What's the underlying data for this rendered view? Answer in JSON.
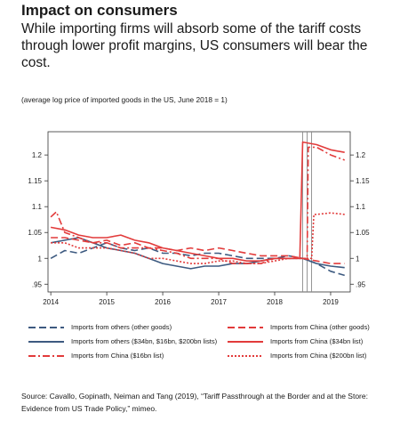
{
  "header": {
    "title": "Impact on consumers",
    "subtitle": "While importing firms will absorb some of the tariff costs through lower profit margins, US consumers will bear the cost.",
    "note": "(average log price of imported goods in the US, June 2018 = 1)"
  },
  "source": "Source: Cavallo, Gopinath, Neiman and Tang (2019), “Tariff Passthrough at the Border and at the Store: Evidence from US Trade Policy,” mimeo.",
  "chart_data": {
    "type": "line",
    "xlim": [
      2013.95,
      2019.35
    ],
    "ylim": [
      0.935,
      1.245
    ],
    "x_ticks": [
      2014,
      2015,
      2016,
      2017,
      2018,
      2019
    ],
    "x_tick_labels": [
      "2014",
      "2015",
      "2016",
      "2017",
      "2018",
      "2019"
    ],
    "y_ticks": [
      0.95,
      1.0,
      1.05,
      1.1,
      1.15,
      1.2
    ],
    "y_tick_labels": [
      ".95",
      "1",
      "1.05",
      "1.1",
      "1.15",
      "1.2"
    ],
    "vertical_markers": [
      2018.5,
      2018.58,
      2018.66
    ],
    "grid": false,
    "legend_position": "bottom",
    "series": [
      {
        "name": "Imports from others (other goods)",
        "color": "#3d5a80",
        "dash": "8,4",
        "x": [
          2014.0,
          2014.25,
          2014.5,
          2014.75,
          2015.0,
          2015.25,
          2015.5,
          2015.75,
          2016.0,
          2016.25,
          2016.5,
          2016.75,
          2017.0,
          2017.25,
          2017.5,
          2017.75,
          2018.0,
          2018.25,
          2018.5,
          2018.75,
          2019.0,
          2019.25
        ],
        "y": [
          1.0,
          1.015,
          1.01,
          1.02,
          1.03,
          1.02,
          1.015,
          1.02,
          1.01,
          1.01,
          1.005,
          1.01,
          1.01,
          1.005,
          1.0,
          1.0,
          1.0,
          1.005,
          1.0,
          0.99,
          0.975,
          0.967
        ]
      },
      {
        "name": "Imports from others ($34bn, $16bn, $200bn lists)",
        "color": "#3d5a80",
        "dash": "",
        "x": [
          2014.0,
          2014.25,
          2014.5,
          2014.75,
          2015.0,
          2015.25,
          2015.5,
          2015.75,
          2016.0,
          2016.25,
          2016.5,
          2016.75,
          2017.0,
          2017.25,
          2017.5,
          2017.75,
          2018.0,
          2018.25,
          2018.5,
          2018.75,
          2019.0,
          2019.25
        ],
        "y": [
          1.03,
          1.035,
          1.04,
          1.03,
          1.02,
          1.015,
          1.01,
          1.0,
          0.99,
          0.985,
          0.98,
          0.985,
          0.985,
          0.99,
          0.99,
          0.995,
          1.0,
          1.0,
          1.0,
          0.99,
          0.985,
          0.982
        ]
      },
      {
        "name": "Imports from China ($16bn list)",
        "color": "#e23b3b",
        "dash": "8,3,2,3",
        "x": [
          2014.0,
          2014.1,
          2014.25,
          2014.5,
          2014.75,
          2015.0,
          2015.25,
          2015.5,
          2015.75,
          2016.0,
          2016.25,
          2016.5,
          2016.75,
          2017.0,
          2017.25,
          2017.5,
          2017.75,
          2018.0,
          2018.25,
          2018.5,
          2018.58,
          2018.6,
          2018.75,
          2019.0,
          2019.25
        ],
        "y": [
          1.08,
          1.09,
          1.05,
          1.04,
          1.03,
          1.03,
          1.02,
          1.02,
          1.02,
          1.015,
          1.01,
          1.0,
          1.0,
          1.0,
          0.99,
          0.99,
          0.99,
          1.0,
          1.0,
          1.0,
          1.0,
          1.215,
          1.215,
          1.2,
          1.19
        ]
      },
      {
        "name": "Imports from China (other goods)",
        "color": "#e23b3b",
        "dash": "8,4",
        "x": [
          2014.0,
          2014.25,
          2014.5,
          2014.75,
          2015.0,
          2015.25,
          2015.5,
          2015.75,
          2016.0,
          2016.25,
          2016.5,
          2016.75,
          2017.0,
          2017.25,
          2017.5,
          2017.75,
          2018.0,
          2018.25,
          2018.5,
          2018.75,
          2019.0,
          2019.25
        ],
        "y": [
          1.04,
          1.04,
          1.035,
          1.03,
          1.035,
          1.025,
          1.03,
          1.02,
          1.02,
          1.015,
          1.02,
          1.015,
          1.02,
          1.015,
          1.01,
          1.005,
          1.005,
          1.005,
          1.0,
          0.995,
          0.99,
          0.99
        ]
      },
      {
        "name": "Imports from China ($34bn list)",
        "color": "#e23b3b",
        "dash": "",
        "x": [
          2014.0,
          2014.25,
          2014.5,
          2014.75,
          2015.0,
          2015.25,
          2015.5,
          2015.75,
          2016.0,
          2016.25,
          2016.5,
          2016.75,
          2017.0,
          2017.25,
          2017.5,
          2017.75,
          2018.0,
          2018.25,
          2018.45,
          2018.5,
          2018.75,
          2019.0,
          2019.25
        ],
        "y": [
          1.06,
          1.055,
          1.045,
          1.04,
          1.04,
          1.045,
          1.035,
          1.03,
          1.02,
          1.015,
          1.01,
          1.005,
          1.0,
          1.0,
          0.995,
          0.995,
          1.0,
          1.0,
          1.0,
          1.225,
          1.22,
          1.21,
          1.205
        ]
      },
      {
        "name": "Imports from China ($200bn list)",
        "color": "#e23b3b",
        "dash": "2,2",
        "x": [
          2014.0,
          2014.25,
          2014.5,
          2014.75,
          2015.0,
          2015.25,
          2015.5,
          2015.75,
          2016.0,
          2016.25,
          2016.5,
          2016.75,
          2017.0,
          2017.25,
          2017.5,
          2017.75,
          2018.0,
          2018.25,
          2018.5,
          2018.66,
          2018.7,
          2018.75,
          2019.0,
          2019.25
        ],
        "y": [
          1.03,
          1.03,
          1.02,
          1.02,
          1.02,
          1.015,
          1.01,
          1.0,
          1.0,
          0.995,
          0.99,
          0.99,
          0.995,
          0.995,
          0.99,
          0.99,
          0.995,
          1.0,
          1.0,
          1.0,
          1.085,
          1.085,
          1.088,
          1.085
        ]
      }
    ]
  }
}
